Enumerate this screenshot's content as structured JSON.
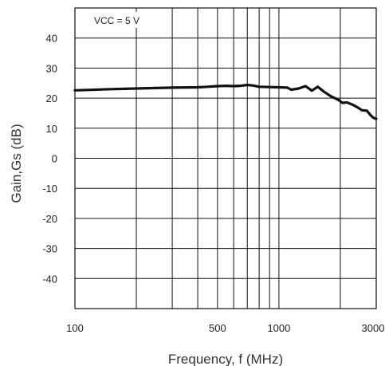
{
  "chart_data": {
    "type": "line",
    "title": "",
    "annotation": "VCC = 5 V",
    "xlabel": "Frequency, f (MHz)",
    "ylabel": "Gain,Gs (dB)",
    "xscale": "log",
    "xlim": [
      100,
      3000
    ],
    "ylim": [
      -50,
      50
    ],
    "grid": true,
    "x_tick_labels": [
      {
        "value": 100,
        "label": "100"
      },
      {
        "value": 500,
        "label": "500"
      },
      {
        "value": 1000,
        "label": "1000"
      },
      {
        "value": 3000,
        "label": "3000"
      }
    ],
    "x_grid_values": [
      100,
      200,
      300,
      400,
      500,
      600,
      700,
      800,
      900,
      1000,
      2000,
      3000
    ],
    "y_ticks": [
      40,
      30,
      20,
      10,
      0,
      -10,
      -20,
      -30,
      -40
    ],
    "y_tick_labels": [
      "40",
      "30",
      "20",
      "10",
      "0",
      "-10",
      "-20",
      "-30",
      "-40"
    ],
    "y_grid_values": [
      50,
      40,
      30,
      20,
      10,
      0,
      -10,
      -20,
      -30,
      -40,
      -50
    ],
    "series": [
      {
        "x": [
          100,
          150,
          200,
          300,
          400,
          450,
          500,
          550,
          600,
          650,
          700,
          750,
          800,
          900,
          1000,
          1100,
          1150,
          1250,
          1350,
          1450,
          1550,
          1650,
          1800,
          1950,
          2050,
          2150,
          2300,
          2450,
          2550,
          2700,
          2800,
          2900,
          3000
        ],
        "y": [
          22.6,
          23.0,
          23.2,
          23.5,
          23.6,
          23.8,
          24.0,
          24.1,
          24.0,
          24.1,
          24.4,
          24.2,
          23.8,
          23.7,
          23.6,
          23.5,
          22.8,
          23.2,
          24.0,
          22.5,
          23.8,
          22.3,
          20.6,
          19.5,
          18.4,
          18.6,
          17.8,
          16.8,
          16.0,
          15.8,
          14.5,
          13.5,
          13.1
        ]
      }
    ],
    "line_color": "#111111"
  }
}
